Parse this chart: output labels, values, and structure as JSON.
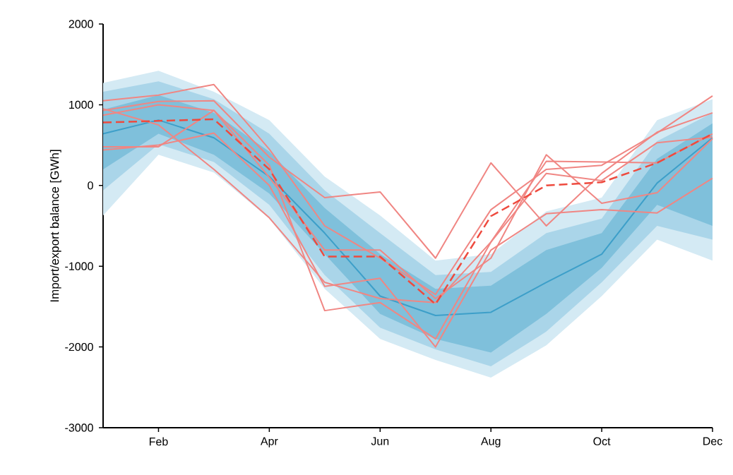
{
  "chart_data": {
    "type": "line",
    "ylabel": "Import/export balance [GWh]",
    "categories": [
      null,
      "Feb",
      null,
      "Apr",
      null,
      "Jun",
      null,
      "Aug",
      null,
      "Oct",
      null,
      "Dec"
    ],
    "ylim": [
      -3000,
      2000
    ],
    "yticks": [
      -3000,
      -2000,
      -1000,
      0,
      1000,
      2000
    ],
    "series": [
      {
        "color": "#bedfee",
        "values": [
          null,
          null,
          null,
          null,
          null,
          null,
          null,
          null,
          null,
          null,
          null,
          null
        ],
        "lower": [
          -370,
          380,
          160,
          -410,
          -1280,
          -1900,
          -2160,
          -2380,
          -1980,
          -1370,
          -670,
          -930
        ],
        "upper": [
          1270,
          1420,
          1160,
          810,
          110,
          -370,
          -930,
          -850,
          -320,
          -150,
          810,
          1070
        ]
      },
      {
        "color": "#7ebfde",
        "values": [
          null,
          null,
          null,
          null,
          null,
          null,
          null,
          null,
          null,
          null,
          null,
          null
        ],
        "lower": [
          -60,
          510,
          290,
          -240,
          -1110,
          -1760,
          -2030,
          -2240,
          -1810,
          -1200,
          -500,
          -670
        ],
        "upper": [
          1160,
          1290,
          1070,
          640,
          -60,
          -590,
          -1110,
          -1070,
          -590,
          -410,
          550,
          900
        ]
      },
      {
        "color": "#3d9fc9",
        "values": [
          640,
          810,
          590,
          110,
          -590,
          -1370,
          -1610,
          -1570,
          -1200,
          -850,
          30,
          590
        ],
        "lower": [
          200,
          640,
          380,
          -100,
          -850,
          -1590,
          -1900,
          -2070,
          -1590,
          -1020,
          -240,
          -500
        ],
        "upper": [
          940,
          1120,
          900,
          420,
          -280,
          -850,
          -1280,
          -1240,
          -800,
          -590,
          330,
          770
        ]
      },
      {
        "color": "#f08683",
        "line_style": "solid",
        "values": [
          1050,
          1120,
          1250,
          450,
          -500,
          -900,
          -1350,
          -300,
          200,
          250,
          650,
          1110
        ]
      },
      {
        "color": "#f08683",
        "line_style": "solid",
        "values": [
          930,
          1040,
          1050,
          350,
          -150,
          -80,
          -900,
          280,
          -500,
          150,
          660,
          900
        ]
      },
      {
        "color": "#f08683",
        "line_style": "solid",
        "values": [
          870,
          1000,
          930,
          100,
          -800,
          -800,
          -1400,
          -900,
          380,
          -220,
          -90,
          580
        ]
      },
      {
        "color": "#f08683",
        "line_style": "solid",
        "values": [
          480,
          480,
          930,
          250,
          -1550,
          -1450,
          -1900,
          -700,
          300,
          290,
          280,
          640
        ]
      },
      {
        "color": "#f08683",
        "line_style": "solid",
        "values": [
          440,
          500,
          650,
          0,
          -1250,
          -1150,
          -2000,
          -800,
          -350,
          -300,
          -340,
          90
        ]
      },
      {
        "color": "#f08683",
        "line_style": "solid",
        "values": [
          950,
          750,
          200,
          -400,
          -1200,
          -1400,
          -1450,
          -700,
          150,
          60,
          530,
          600
        ]
      },
      {
        "color": "#ee4a3e",
        "line_style": "dashed",
        "values": [
          780,
          800,
          820,
          200,
          -880,
          -880,
          -1470,
          -380,
          0,
          40,
          280,
          640
        ]
      }
    ]
  }
}
